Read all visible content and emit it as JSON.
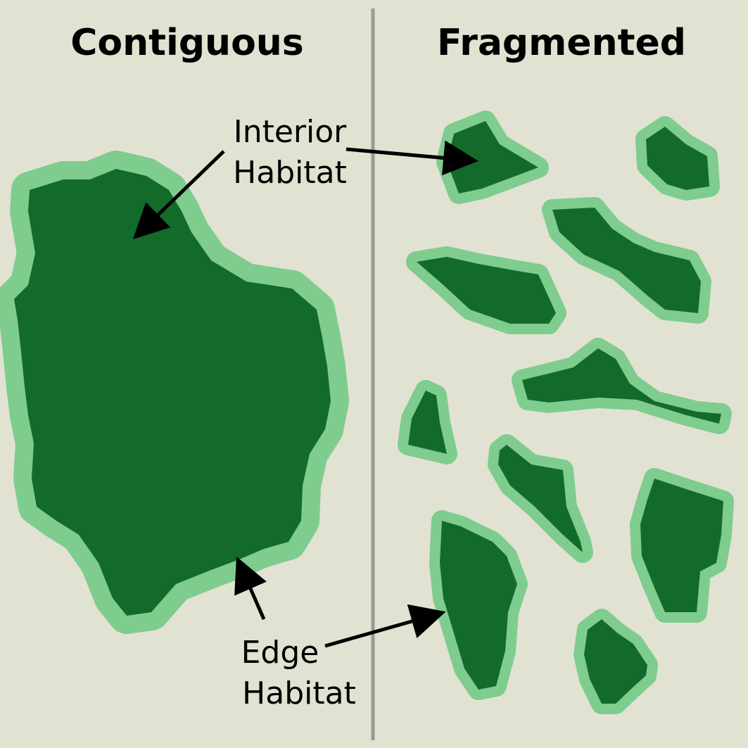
{
  "titles": {
    "left": "Contiguous",
    "right": "Fragmented"
  },
  "labels": {
    "interior_line1": "Interior",
    "interior_line2": "Habitat",
    "edge_line1": "Edge",
    "edge_line2": "Habitat"
  },
  "colors": {
    "background": "#e2e2d2",
    "divider": "#9a9a9a",
    "edge_habitat": "#7fcc8f",
    "interior_habitat": "#136b2b",
    "arrow": "#000000"
  }
}
